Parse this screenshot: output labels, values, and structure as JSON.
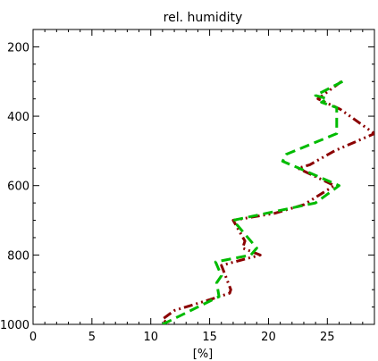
{
  "chart_data": {
    "type": "line",
    "title": "rel. humidity",
    "xlabel": "[%]",
    "ylabel": "",
    "xlim": [
      0,
      29
    ],
    "ylim": [
      1000,
      150
    ],
    "y_inverted": true,
    "xticks": [
      0,
      5,
      10,
      15,
      20,
      25
    ],
    "yticks": [
      200,
      400,
      600,
      800,
      1000
    ],
    "grid": false,
    "legend": "none",
    "series": [
      {
        "color": "#8b0000",
        "dash": "dash-dot-dot",
        "x": [
          26.2,
          25.0,
          24.2,
          26.1,
          29.0,
          25.6,
          23.5,
          22.5,
          25.6,
          23.0,
          20.5,
          17.0,
          18.0,
          17.8,
          19.3,
          16.0,
          16.8,
          16.7,
          14.9,
          12.0,
          11.0,
          11.5
        ],
        "y": [
          300,
          330,
          350,
          380,
          450,
          500,
          540,
          550,
          600,
          655,
          680,
          700,
          760,
          780,
          800,
          830,
          900,
          910,
          930,
          960,
          985,
          1000
        ]
      },
      {
        "color": "#00bb00",
        "dash": "dash",
        "x": [
          26.3,
          24.0,
          25.0,
          24.5,
          25.8,
          25.8,
          21.5,
          21.2,
          22.6,
          26.0,
          24.0,
          17.0,
          19.0,
          18.5,
          15.5,
          16.0,
          15.6,
          15.8,
          12.5,
          11.0
        ],
        "y": [
          300,
          340,
          350,
          360,
          375,
          450,
          510,
          530,
          550,
          600,
          650,
          700,
          780,
          800,
          820,
          860,
          880,
          920,
          975,
          1000
        ]
      }
    ]
  }
}
